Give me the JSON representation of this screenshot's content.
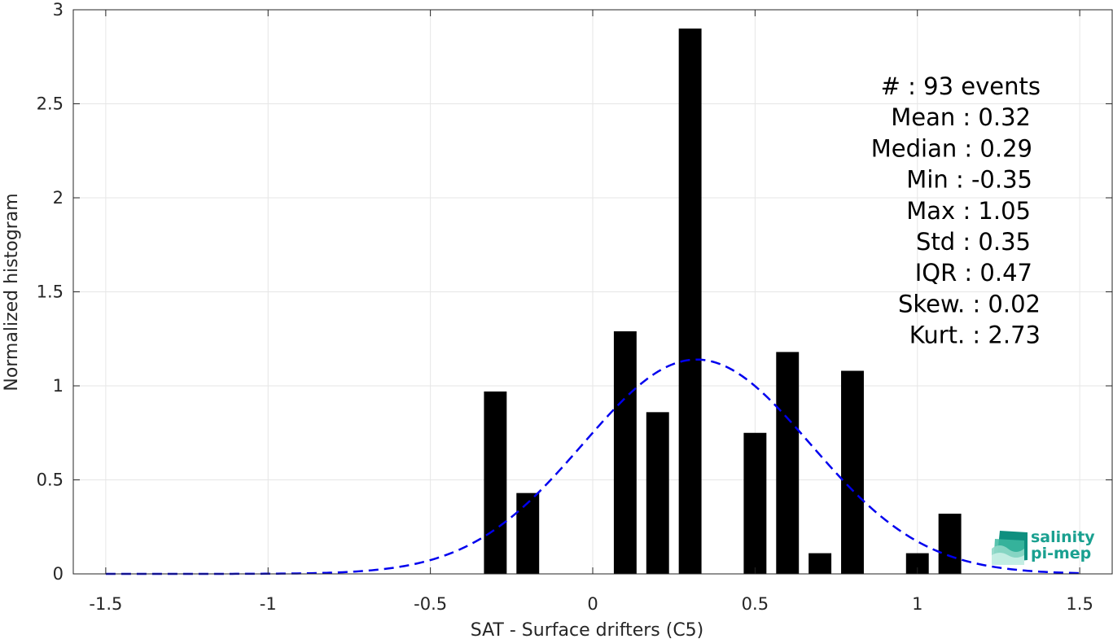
{
  "chart_data": {
    "type": "bar",
    "xlabel": "SAT - Surface drifters (C5)",
    "ylabel": "Normalized histogram",
    "xlim": [
      -1.6,
      1.6
    ],
    "ylim": [
      0,
      3
    ],
    "xticks": [
      -1.5,
      -1,
      -0.5,
      0,
      0.5,
      1,
      1.5
    ],
    "xtick_labels": [
      "-1.5",
      "-1",
      "-0.5",
      "0",
      "0.5",
      "1",
      "1.5"
    ],
    "yticks": [
      0,
      0.5,
      1,
      1.5,
      2,
      2.5,
      3
    ],
    "ytick_labels": [
      "0",
      "0.5",
      "1",
      "1.5",
      "2",
      "2.5",
      "3"
    ],
    "grid": true,
    "bar_color": "#000000",
    "bar_width": 0.07,
    "bars": [
      {
        "x": -0.3,
        "value": 0.97
      },
      {
        "x": -0.2,
        "value": 0.43
      },
      {
        "x": 0.1,
        "value": 1.29
      },
      {
        "x": 0.2,
        "value": 0.86
      },
      {
        "x": 0.3,
        "value": 2.9
      },
      {
        "x": 0.5,
        "value": 0.75
      },
      {
        "x": 0.6,
        "value": 1.18
      },
      {
        "x": 0.7,
        "value": 0.11
      },
      {
        "x": 0.8,
        "value": 1.08
      },
      {
        "x": 1.0,
        "value": 0.11
      },
      {
        "x": 1.1,
        "value": 0.32
      }
    ],
    "fit_curve": {
      "style": "dashed",
      "color": "#0000ee",
      "kind": "gaussian",
      "mean": 0.32,
      "std": 0.35,
      "x_range": [
        -1.5,
        1.5
      ]
    },
    "annotations": [
      "#  : 93 events",
      "Mean : 0.32",
      "Median : 0.29",
      "Min : -0.35",
      "Max : 1.05",
      "Std : 0.35",
      "IQR : 0.47",
      "Skew. : 0.02",
      "Kurt. : 2.73"
    ]
  },
  "logo": {
    "line1": "salinity",
    "line2": "pi-mep",
    "color": "#1aa090"
  }
}
